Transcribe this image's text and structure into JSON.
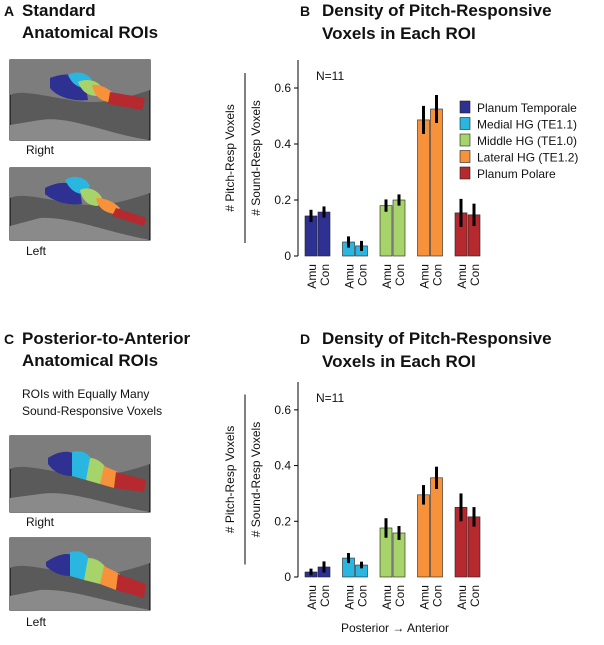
{
  "panels": {
    "a": {
      "label": "A",
      "title": [
        "Standard",
        "Anatomical ROIs"
      ],
      "images": [
        "Right",
        "Left"
      ]
    },
    "c": {
      "label": "C",
      "title": [
        "Posterior-to-Anterior",
        "Anatomical ROIs"
      ],
      "subtitle": [
        "ROIs with Equally Many",
        "Sound-Responsive Voxels"
      ],
      "images": [
        "Right",
        "Left"
      ]
    }
  },
  "chart_data": [
    {
      "type": "bar",
      "panel": "B",
      "title": [
        "Density of Pitch-Responsive",
        "Voxels in Each ROI"
      ],
      "annotation": "N=11",
      "ylabel": {
        "numerator": "# Pitch-Resp Voxels",
        "denominator": "# Sound-Resp Voxels"
      },
      "categories": [
        "Amu",
        "Con"
      ],
      "series": [
        {
          "name": "Planum Temporale",
          "color": "#2e3192",
          "values": [
            0.143,
            0.157
          ],
          "errors": [
            0.022,
            0.02
          ]
        },
        {
          "name": "Medial HG (TE1.1)",
          "color": "#29b6e0",
          "values": [
            0.05,
            0.036
          ],
          "errors": [
            0.02,
            0.018
          ]
        },
        {
          "name": "Middle HG (TE1.0)",
          "color": "#a6d46a",
          "values": [
            0.18,
            0.2
          ],
          "errors": [
            0.022,
            0.02
          ]
        },
        {
          "name": "Lateral HG (TE1.2)",
          "color": "#f7923a",
          "values": [
            0.486,
            0.525
          ],
          "errors": [
            0.05,
            0.05
          ]
        },
        {
          "name": "Planum Polare",
          "color": "#b5292f",
          "values": [
            0.154,
            0.147
          ],
          "errors": [
            0.05,
            0.04
          ]
        }
      ],
      "ylim": [
        0,
        0.7
      ],
      "yticks": [
        0,
        0.2,
        0.4,
        0.6
      ],
      "legend": "right"
    },
    {
      "type": "bar",
      "panel": "D",
      "title": [
        "Density of Pitch-Responsive",
        "Voxels in Each ROI"
      ],
      "annotation": "N=11",
      "ylabel": {
        "numerator": "# Pitch-Resp Voxels",
        "denominator": "# Sound-Resp Voxels"
      },
      "xlabel": "Posterior → Anterior",
      "categories": [
        "Amu",
        "Con"
      ],
      "series": [
        {
          "color": "#2e3192",
          "values": [
            0.018,
            0.036
          ],
          "errors": [
            0.012,
            0.02
          ]
        },
        {
          "color": "#29b6e0",
          "values": [
            0.068,
            0.043
          ],
          "errors": [
            0.018,
            0.012
          ]
        },
        {
          "color": "#a6d46a",
          "values": [
            0.176,
            0.158
          ],
          "errors": [
            0.035,
            0.025
          ]
        },
        {
          "color": "#f7923a",
          "values": [
            0.295,
            0.356
          ],
          "errors": [
            0.035,
            0.04
          ]
        },
        {
          "color": "#b5292f",
          "values": [
            0.25,
            0.216
          ],
          "errors": [
            0.05,
            0.035
          ]
        }
      ],
      "ylim": [
        0,
        0.7
      ],
      "yticks": [
        0,
        0.2,
        0.4,
        0.6
      ]
    }
  ]
}
